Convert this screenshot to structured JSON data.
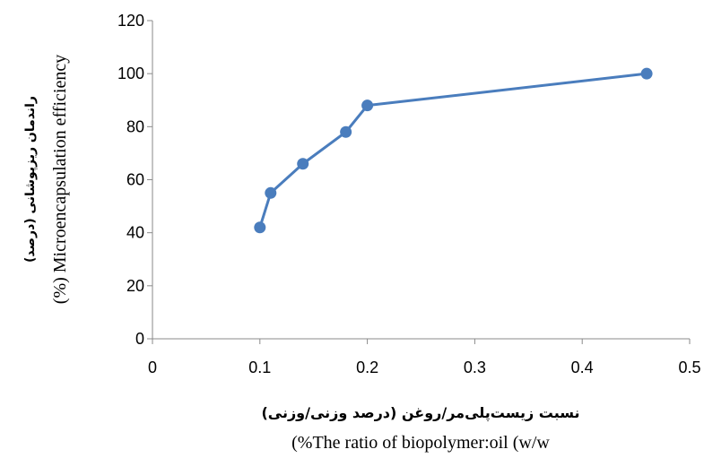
{
  "chart_data": {
    "type": "line",
    "series": [
      {
        "x": [
          0.1,
          0.11,
          0.14,
          0.18,
          0.2,
          0.46
        ],
        "y": [
          42,
          55,
          66,
          78,
          88,
          100
        ],
        "color": "#4a7dbd"
      }
    ],
    "xlim": [
      0,
      0.5
    ],
    "ylim": [
      0,
      120
    ],
    "x_ticks": [
      "0",
      "0.1",
      "0.2",
      "0.3",
      "0.4",
      "0.5"
    ],
    "y_ticks": [
      "0",
      "20",
      "40",
      "60",
      "80",
      "100",
      "120"
    ],
    "xlabel_fa": "نسبت زیست‌پلی‌مر/روغن (درصد وزنی/وزنی)",
    "xlabel_en": "(%The ratio of biopolymer:oil (w/w",
    "ylabel_fa": "راندمان ریزپوشانی (درصد)",
    "ylabel_en": "(%) Microencapsulation efficiency",
    "grid": false,
    "legend": "none"
  }
}
